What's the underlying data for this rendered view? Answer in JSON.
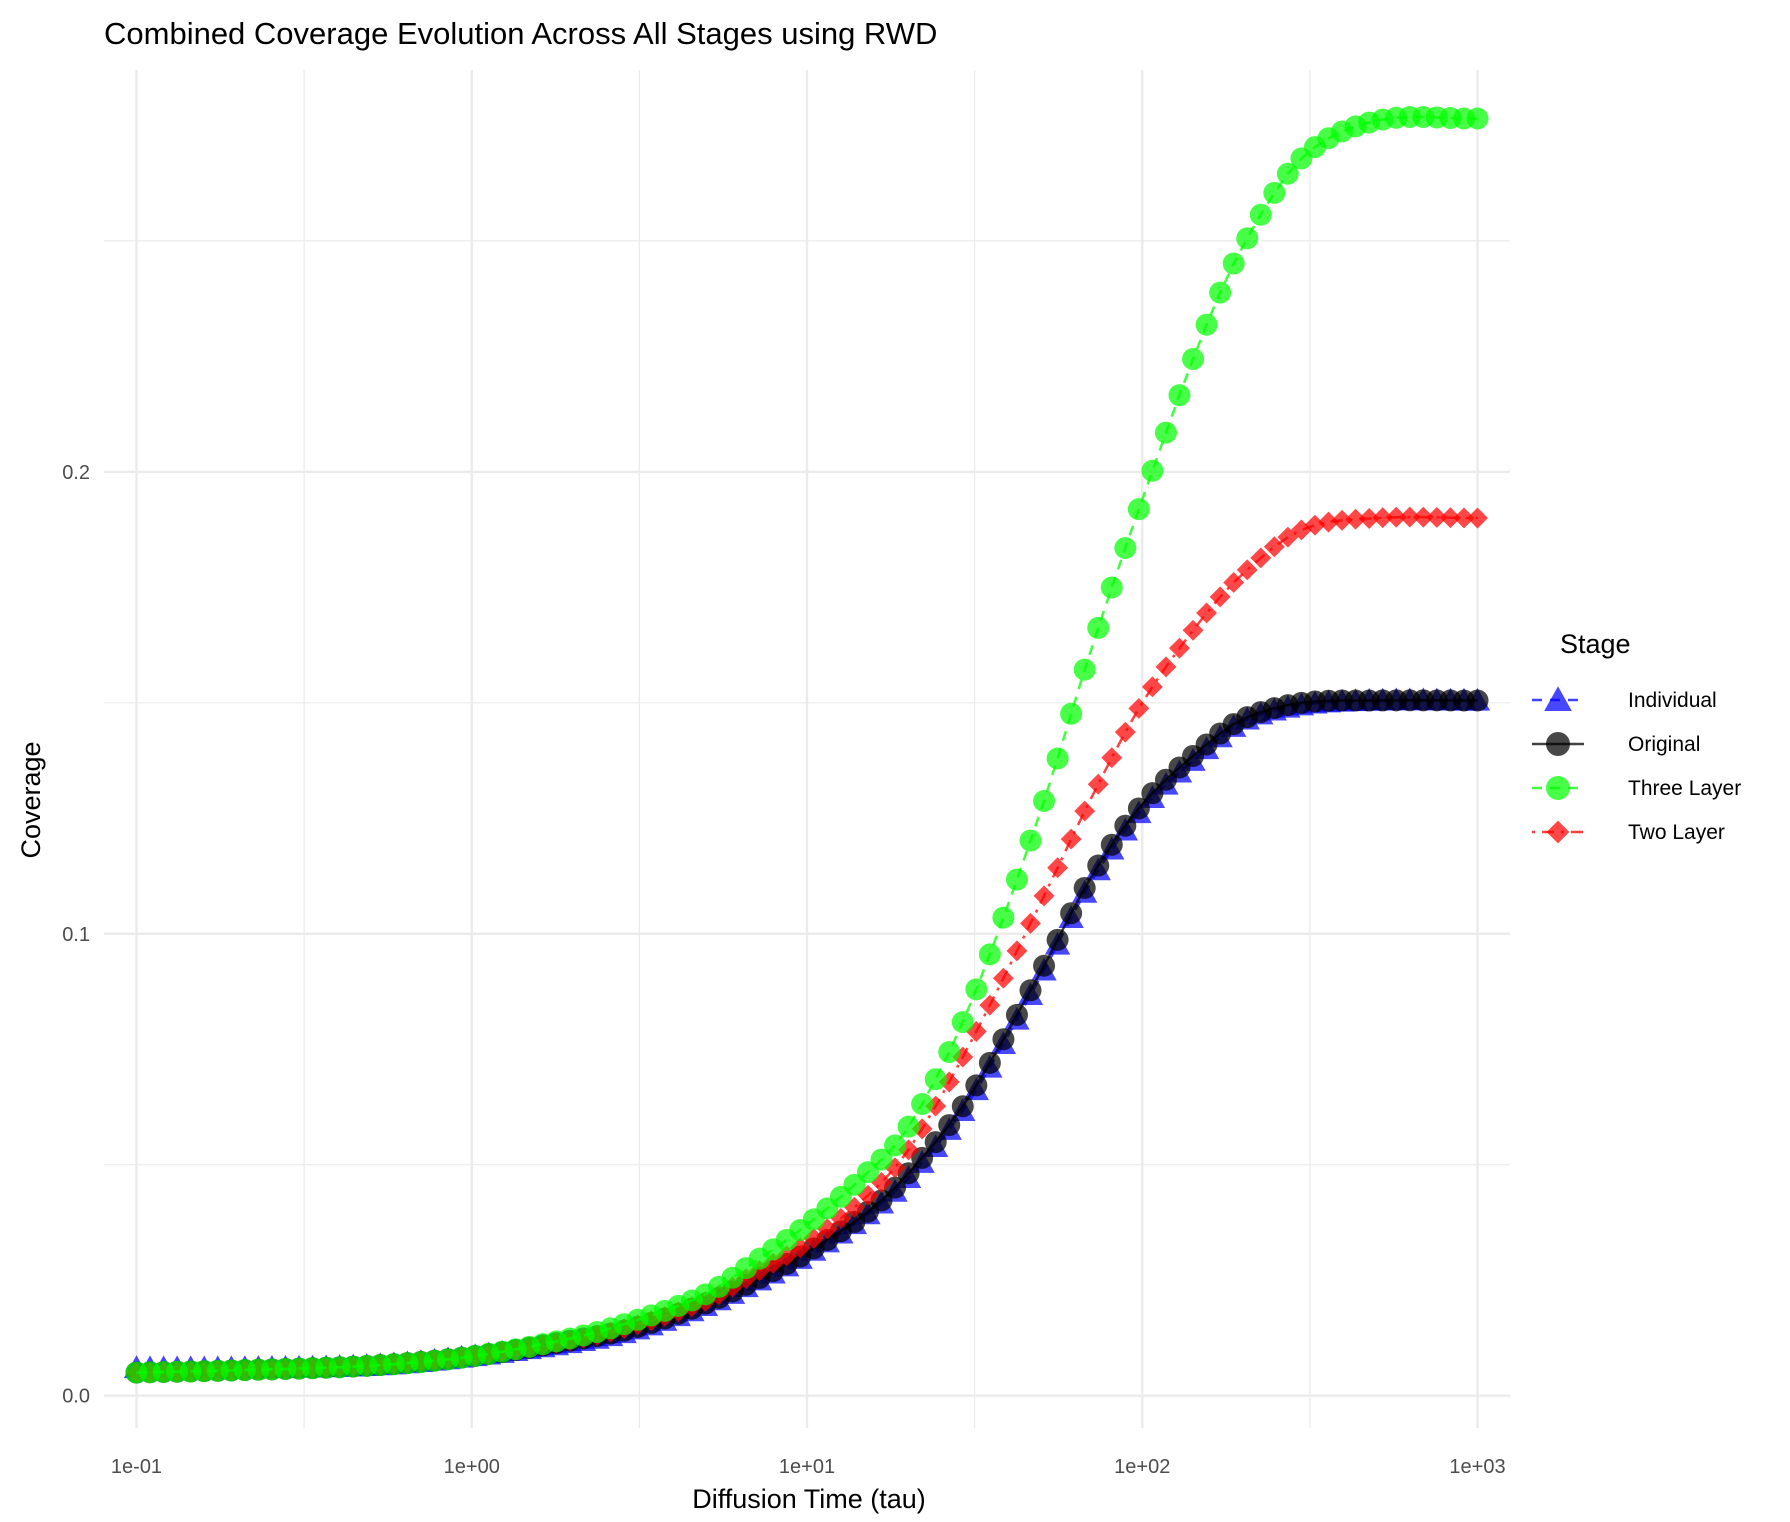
{
  "chart_data": {
    "type": "line",
    "title": "Combined Coverage Evolution Across All Stages using RWD",
    "xlabel": "Diffusion Time (tau)",
    "ylabel": "Coverage",
    "x_scale": "log10",
    "xlim": [
      0.08,
      1250
    ],
    "ylim": [
      -0.007,
      0.287
    ],
    "x_ticks": [
      0.1,
      1,
      10,
      100,
      1000
    ],
    "x_tick_labels": [
      "1e-01",
      "1e+00",
      "1e+01",
      "1e+02",
      "1e+03"
    ],
    "y_ticks": [
      0.0,
      0.1,
      0.2
    ],
    "y_tick_labels": [
      "0.0",
      "0.1",
      "0.2"
    ],
    "grid": true,
    "legend": {
      "title": "Stage",
      "position": "right",
      "entries": [
        "Individual",
        "Original",
        "Three Layer",
        "Two Layer"
      ]
    },
    "series": [
      {
        "name": "Individual",
        "color": "#0000ff",
        "marker": "triangle",
        "line": "dashed",
        "points": [
          [
            0.1,
            0.006
          ],
          [
            0.2,
            0.006
          ],
          [
            0.5,
            0.0065
          ],
          [
            1,
            0.0085
          ],
          [
            2,
            0.0115
          ],
          [
            3,
            0.014
          ],
          [
            5,
            0.0195
          ],
          [
            7,
            0.0245
          ],
          [
            10,
            0.0305
          ],
          [
            15,
            0.039
          ],
          [
            20,
            0.047
          ],
          [
            30,
            0.063
          ],
          [
            50,
            0.091
          ],
          [
            70,
            0.111
          ],
          [
            100,
            0.127
          ],
          [
            150,
            0.139
          ],
          [
            200,
            0.146
          ],
          [
            300,
            0.1495
          ],
          [
            500,
            0.1505
          ],
          [
            1000,
            0.1505
          ]
        ]
      },
      {
        "name": "Original",
        "color": "#000000",
        "marker": "circle",
        "line": "solid",
        "points": [
          [
            0.1,
            0.005
          ],
          [
            0.2,
            0.0055
          ],
          [
            0.5,
            0.0065
          ],
          [
            1,
            0.0085
          ],
          [
            2,
            0.012
          ],
          [
            3,
            0.0145
          ],
          [
            5,
            0.02
          ],
          [
            7,
            0.025
          ],
          [
            10,
            0.031
          ],
          [
            15,
            0.0395
          ],
          [
            20,
            0.048
          ],
          [
            30,
            0.064
          ],
          [
            50,
            0.092
          ],
          [
            70,
            0.112
          ],
          [
            100,
            0.128
          ],
          [
            150,
            0.14
          ],
          [
            200,
            0.1465
          ],
          [
            300,
            0.15
          ],
          [
            500,
            0.1505
          ],
          [
            1000,
            0.1505
          ]
        ]
      },
      {
        "name": "Three Layer",
        "color": "#00ff00",
        "marker": "circle",
        "line": "dashed",
        "points": [
          [
            0.1,
            0.005
          ],
          [
            0.2,
            0.0055
          ],
          [
            0.5,
            0.0065
          ],
          [
            1,
            0.0085
          ],
          [
            2,
            0.0125
          ],
          [
            3,
            0.016
          ],
          [
            5,
            0.022
          ],
          [
            7,
            0.029
          ],
          [
            10,
            0.037
          ],
          [
            15,
            0.048
          ],
          [
            20,
            0.058
          ],
          [
            30,
            0.083
          ],
          [
            50,
            0.127
          ],
          [
            70,
            0.161
          ],
          [
            100,
            0.194
          ],
          [
            150,
            0.229
          ],
          [
            200,
            0.249
          ],
          [
            300,
            0.268
          ],
          [
            500,
            0.276
          ],
          [
            1000,
            0.2765
          ]
        ]
      },
      {
        "name": "Two Layer",
        "color": "#ff0000",
        "marker": "diamond",
        "line": "dotdash",
        "points": [
          [
            0.1,
            0.005
          ],
          [
            0.2,
            0.0055
          ],
          [
            0.5,
            0.0065
          ],
          [
            1,
            0.0085
          ],
          [
            2,
            0.012
          ],
          [
            3,
            0.015
          ],
          [
            5,
            0.0205
          ],
          [
            7,
            0.0265
          ],
          [
            10,
            0.033
          ],
          [
            15,
            0.043
          ],
          [
            20,
            0.053
          ],
          [
            30,
            0.075
          ],
          [
            50,
            0.107
          ],
          [
            70,
            0.129
          ],
          [
            100,
            0.15
          ],
          [
            150,
            0.168
          ],
          [
            200,
            0.178
          ],
          [
            300,
            0.1875
          ],
          [
            500,
            0.19
          ],
          [
            1000,
            0.19
          ]
        ]
      }
    ]
  }
}
